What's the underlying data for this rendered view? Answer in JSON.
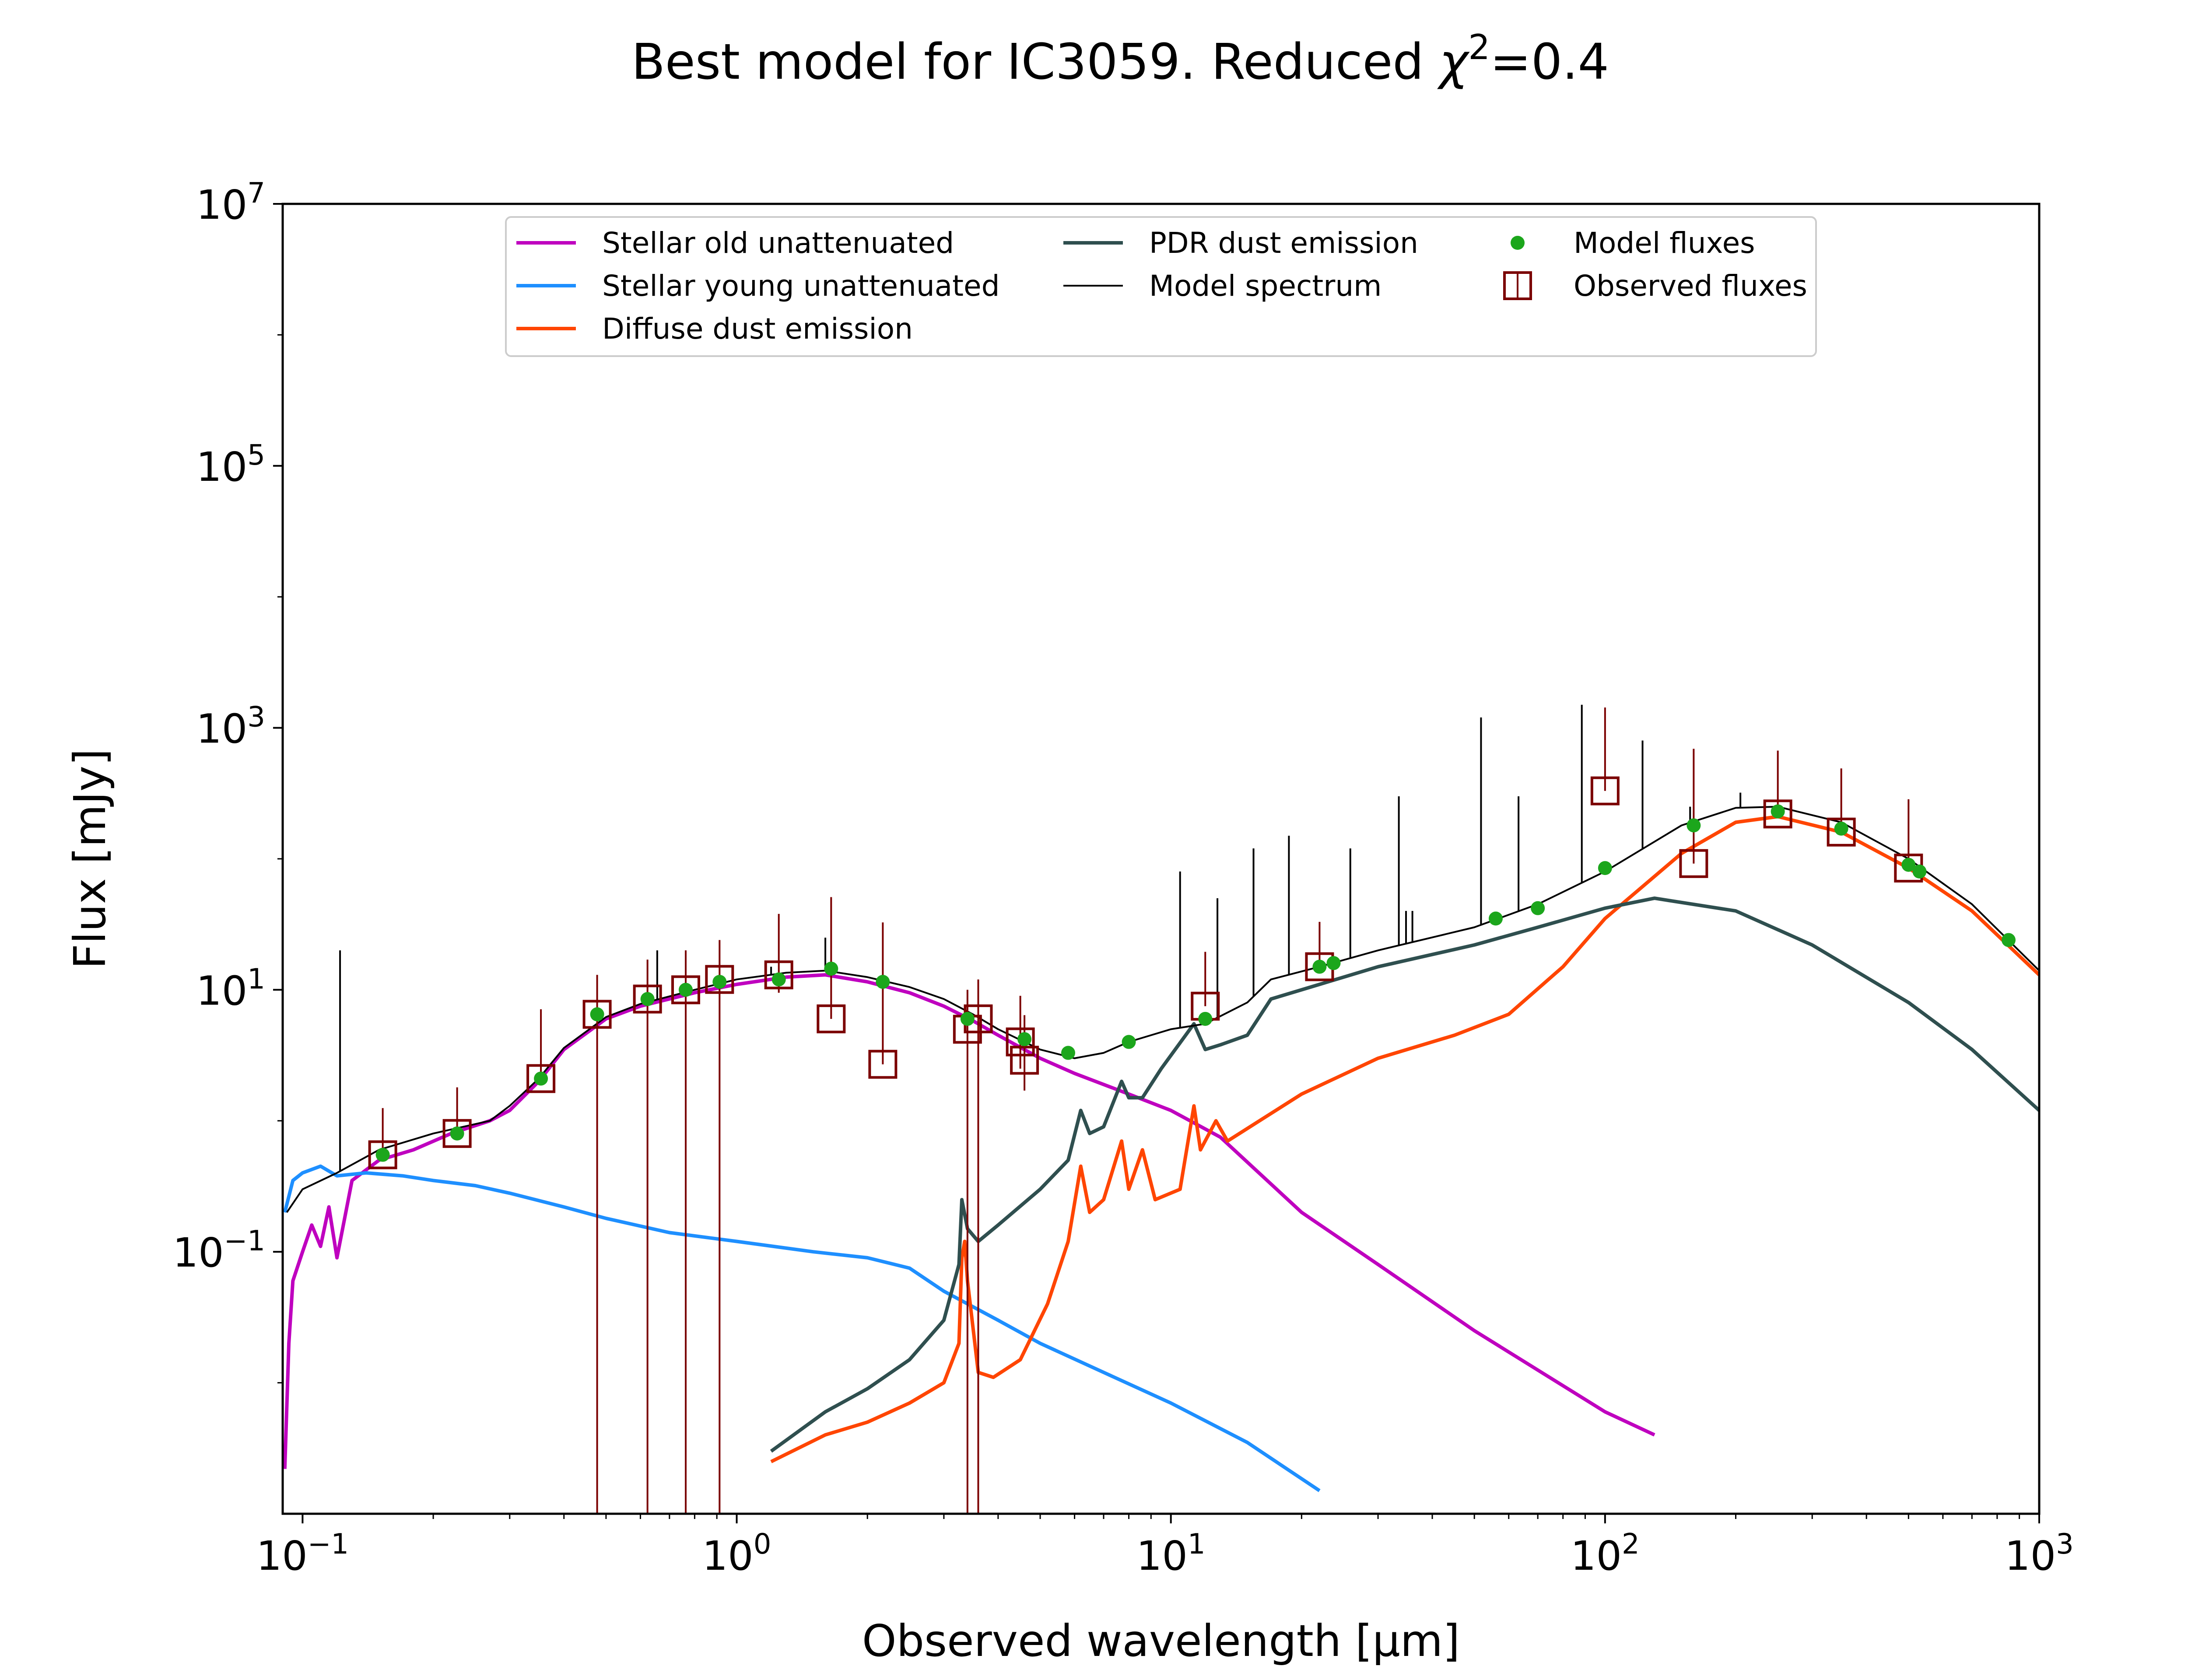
{
  "chart_data": {
    "type": "line",
    "title": "Best model for IC3059. Reduced",
    "title_chi": "χ",
    "title_sup": "2",
    "title_tail": "=0.4",
    "xlabel": "Observed wavelength [μm]",
    "ylabel": "Flux [mJy]",
    "xscale": "log",
    "yscale": "log",
    "xlim": [
      0.09,
      1000
    ],
    "ylim": [
      0.001,
      10000000
    ],
    "grid": false,
    "legend_position": "top-center",
    "xticks": [
      {
        "value": 0.1,
        "base": "10",
        "exp": "−1"
      },
      {
        "value": 1,
        "base": "10",
        "exp": "0"
      },
      {
        "value": 10,
        "base": "10",
        "exp": "1"
      },
      {
        "value": 100,
        "base": "10",
        "exp": "2"
      },
      {
        "value": 1000,
        "base": "10",
        "exp": "3"
      }
    ],
    "yticks": [
      {
        "value": 0.1,
        "base": "10",
        "exp": "−1"
      },
      {
        "value": 10,
        "base": "10",
        "exp": "1"
      },
      {
        "value": 1000,
        "base": "10",
        "exp": "3"
      },
      {
        "value": 100000,
        "base": "10",
        "exp": "5"
      },
      {
        "value": 10000000,
        "base": "10",
        "exp": "7"
      }
    ],
    "series": [
      {
        "name": "Stellar old unattenuated",
        "color": "#bf00bf",
        "points": [
          [
            0.091,
            0.0022
          ],
          [
            0.093,
            0.02
          ],
          [
            0.095,
            0.06
          ],
          [
            0.1,
            0.1
          ],
          [
            0.105,
            0.16
          ],
          [
            0.11,
            0.11
          ],
          [
            0.115,
            0.22
          ],
          [
            0.12,
            0.09
          ],
          [
            0.13,
            0.35
          ],
          [
            0.15,
            0.5
          ],
          [
            0.18,
            0.6
          ],
          [
            0.22,
            0.8
          ],
          [
            0.27,
            1.0
          ],
          [
            0.3,
            1.2
          ],
          [
            0.35,
            2.0
          ],
          [
            0.4,
            3.5
          ],
          [
            0.5,
            6.0
          ],
          [
            0.6,
            7.5
          ],
          [
            0.8,
            9.5
          ],
          [
            1.0,
            11
          ],
          [
            1.3,
            12.5
          ],
          [
            1.6,
            13
          ],
          [
            2.0,
            11.5
          ],
          [
            2.5,
            9.5
          ],
          [
            3.0,
            7.5
          ],
          [
            3.5,
            5.8
          ],
          [
            4.0,
            4.5
          ],
          [
            5.0,
            3.0
          ],
          [
            6.0,
            2.3
          ],
          [
            8.0,
            1.6
          ],
          [
            10,
            1.2
          ],
          [
            13,
            0.75
          ],
          [
            20,
            0.2
          ],
          [
            30,
            0.08
          ],
          [
            50,
            0.025
          ],
          [
            100,
            0.006
          ],
          [
            130,
            0.004
          ]
        ]
      },
      {
        "name": "Stellar young unattenuated",
        "color": "#1e8fff",
        "points": [
          [
            0.091,
            0.2
          ],
          [
            0.095,
            0.35
          ],
          [
            0.1,
            0.4
          ],
          [
            0.11,
            0.45
          ],
          [
            0.12,
            0.38
          ],
          [
            0.14,
            0.4
          ],
          [
            0.17,
            0.38
          ],
          [
            0.2,
            0.35
          ],
          [
            0.25,
            0.32
          ],
          [
            0.3,
            0.28
          ],
          [
            0.4,
            0.22
          ],
          [
            0.5,
            0.18
          ],
          [
            0.7,
            0.14
          ],
          [
            1.0,
            0.12
          ],
          [
            1.5,
            0.1
          ],
          [
            2.0,
            0.09
          ],
          [
            2.5,
            0.075
          ],
          [
            3.0,
            0.05
          ],
          [
            4.0,
            0.03
          ],
          [
            5.0,
            0.02
          ],
          [
            7.0,
            0.012
          ],
          [
            10,
            0.007
          ],
          [
            15,
            0.0035
          ],
          [
            22,
            0.0015
          ]
        ]
      },
      {
        "name": "Diffuse dust emission",
        "color": "#ff4500",
        "points": [
          [
            1.2,
            0.0025
          ],
          [
            1.6,
            0.004
          ],
          [
            2.0,
            0.005
          ],
          [
            2.5,
            0.007
          ],
          [
            3.0,
            0.01
          ],
          [
            3.25,
            0.02
          ],
          [
            3.3,
            0.09
          ],
          [
            3.35,
            0.12
          ],
          [
            3.4,
            0.06
          ],
          [
            3.6,
            0.012
          ],
          [
            3.9,
            0.011
          ],
          [
            4.5,
            0.015
          ],
          [
            5.2,
            0.04
          ],
          [
            5.8,
            0.12
          ],
          [
            6.2,
            0.45
          ],
          [
            6.5,
            0.2
          ],
          [
            7.0,
            0.25
          ],
          [
            7.7,
            0.7
          ],
          [
            8.0,
            0.3
          ],
          [
            8.6,
            0.6
          ],
          [
            9.2,
            0.25
          ],
          [
            10.5,
            0.3
          ],
          [
            11.3,
            1.3
          ],
          [
            11.7,
            0.6
          ],
          [
            12.7,
            1.0
          ],
          [
            13.5,
            0.7
          ],
          [
            16,
            1.0
          ],
          [
            20,
            1.6
          ],
          [
            30,
            3.0
          ],
          [
            45,
            4.5
          ],
          [
            60,
            6.5
          ],
          [
            80,
            15
          ],
          [
            100,
            35
          ],
          [
            150,
            110
          ],
          [
            200,
            190
          ],
          [
            250,
            210
          ],
          [
            350,
            160
          ],
          [
            500,
            85
          ],
          [
            700,
            40
          ],
          [
            1000,
            13
          ]
        ]
      },
      {
        "name": "PDR dust emission",
        "color": "#2f4f4f",
        "points": [
          [
            1.2,
            0.003
          ],
          [
            1.6,
            0.006
          ],
          [
            2.0,
            0.009
          ],
          [
            2.5,
            0.015
          ],
          [
            3.0,
            0.03
          ],
          [
            3.25,
            0.08
          ],
          [
            3.3,
            0.25
          ],
          [
            3.4,
            0.15
          ],
          [
            3.6,
            0.12
          ],
          [
            4.0,
            0.16
          ],
          [
            5.0,
            0.3
          ],
          [
            5.8,
            0.5
          ],
          [
            6.2,
            1.2
          ],
          [
            6.5,
            0.8
          ],
          [
            7.0,
            0.9
          ],
          [
            7.7,
            2.0
          ],
          [
            8.0,
            1.5
          ],
          [
            8.6,
            1.5
          ],
          [
            9.5,
            2.5
          ],
          [
            11.3,
            5.5
          ],
          [
            12.0,
            3.5
          ],
          [
            13,
            3.8
          ],
          [
            15,
            4.5
          ],
          [
            17,
            8.5
          ],
          [
            22,
            11
          ],
          [
            30,
            15
          ],
          [
            50,
            22
          ],
          [
            70,
            30
          ],
          [
            100,
            42
          ],
          [
            130,
            50
          ],
          [
            200,
            40
          ],
          [
            300,
            22
          ],
          [
            500,
            8
          ],
          [
            700,
            3.5
          ],
          [
            1000,
            1.2
          ]
        ]
      },
      {
        "name": "Model spectrum",
        "color": "#000000",
        "points": [
          [
            0.092,
            0.2
          ],
          [
            0.1,
            0.3
          ],
          [
            0.12,
            0.4
          ],
          [
            0.15,
            0.6
          ],
          [
            0.2,
            0.8
          ],
          [
            0.27,
            1.0
          ],
          [
            0.3,
            1.3
          ],
          [
            0.35,
            2.1
          ],
          [
            0.4,
            3.6
          ],
          [
            0.5,
            6.2
          ],
          [
            0.6,
            7.8
          ],
          [
            0.8,
            10
          ],
          [
            1.0,
            12
          ],
          [
            1.3,
            13.5
          ],
          [
            1.6,
            14
          ],
          [
            2.0,
            12.5
          ],
          [
            2.5,
            10.5
          ],
          [
            3.0,
            8.5
          ],
          [
            3.5,
            6.5
          ],
          [
            4.0,
            5.0
          ],
          [
            5.0,
            3.5
          ],
          [
            6.0,
            3.0
          ],
          [
            7.0,
            3.3
          ],
          [
            8.0,
            4.0
          ],
          [
            10,
            5.0
          ],
          [
            12,
            5.5
          ],
          [
            15,
            8
          ],
          [
            17,
            12
          ],
          [
            22,
            15
          ],
          [
            30,
            20
          ],
          [
            50,
            30
          ],
          [
            70,
            45
          ],
          [
            100,
            80
          ],
          [
            150,
            180
          ],
          [
            200,
            245
          ],
          [
            250,
            250
          ],
          [
            350,
            190
          ],
          [
            500,
            100
          ],
          [
            700,
            45
          ],
          [
            1000,
            14
          ]
        ],
        "lines": [
          [
            0.122,
            20
          ],
          [
            0.656,
            20
          ],
          [
            1.2,
            15
          ],
          [
            1.6,
            25
          ],
          [
            10.5,
            80
          ],
          [
            12.8,
            50
          ],
          [
            15.5,
            120
          ],
          [
            18.7,
            150
          ],
          [
            25.9,
            120
          ],
          [
            33.5,
            300
          ],
          [
            34.8,
            40
          ],
          [
            36,
            40
          ],
          [
            51.8,
            1200
          ],
          [
            63.2,
            300
          ],
          [
            88.4,
            1500
          ],
          [
            122,
            800
          ],
          [
            157,
            250
          ],
          [
            205,
            320
          ]
        ]
      }
    ],
    "model_fluxes": {
      "name": "Model fluxes",
      "color": "#1ca61c",
      "points": [
        [
          0.153,
          0.55
        ],
        [
          0.227,
          0.8
        ],
        [
          0.354,
          2.1
        ],
        [
          0.477,
          6.5
        ],
        [
          0.623,
          8.5
        ],
        [
          0.763,
          10
        ],
        [
          0.913,
          11.5
        ],
        [
          1.25,
          12
        ],
        [
          1.65,
          14.5
        ],
        [
          2.17,
          11.5
        ],
        [
          3.4,
          6.0
        ],
        [
          4.6,
          4.2
        ],
        [
          5.8,
          3.3
        ],
        [
          8.0,
          4.0
        ],
        [
          12,
          6.0
        ],
        [
          22,
          15
        ],
        [
          23.7,
          16
        ],
        [
          56,
          35
        ],
        [
          70,
          42
        ],
        [
          100,
          85
        ],
        [
          160,
          180
        ],
        [
          250,
          230
        ],
        [
          350,
          170
        ],
        [
          500,
          90
        ],
        [
          530,
          80
        ],
        [
          850,
          24
        ]
      ]
    },
    "observed_fluxes": {
      "name": "Observed fluxes",
      "color": "#7b0000",
      "points": [
        {
          "x": 0.153,
          "y": 0.55,
          "err_lo": 0.001,
          "err_hi": 0.7
        },
        {
          "x": 0.227,
          "y": 0.8,
          "err_lo": 0.001,
          "err_hi": 1.0
        },
        {
          "x": 0.354,
          "y": 2.1,
          "err_lo": 0.001,
          "err_hi": 5.0
        },
        {
          "x": 0.477,
          "y": 6.5,
          "err_lo": 6.5,
          "err_hi": 6.5
        },
        {
          "x": 0.623,
          "y": 8.5,
          "err_lo": 8.5,
          "err_hi": 8.5
        },
        {
          "x": 0.763,
          "y": 10,
          "err_lo": 10,
          "err_hi": 10
        },
        {
          "x": 0.913,
          "y": 12,
          "err_lo": 12,
          "err_hi": 12
        },
        {
          "x": 1.25,
          "y": 13,
          "err_lo": 3.5,
          "err_hi": 25
        },
        {
          "x": 1.65,
          "y": 6.0,
          "err_lo": 0.001,
          "err_hi": 45
        },
        {
          "x": 2.17,
          "y": 2.7,
          "err_lo": 0.001,
          "err_hi": 30
        },
        {
          "x": 3.4,
          "y": 5.0,
          "err_lo": 5.0,
          "err_hi": 5.0
        },
        {
          "x": 3.6,
          "y": 6.0,
          "err_lo": 6.0,
          "err_hi": 6.0
        },
        {
          "x": 4.5,
          "y": 4.0,
          "err_lo": 1.5,
          "err_hi": 5.0
        },
        {
          "x": 4.6,
          "y": 2.9,
          "err_lo": 1.2,
          "err_hi": 3.5
        },
        {
          "x": 12,
          "y": 7.5,
          "err_lo": 0.001,
          "err_hi": 12
        },
        {
          "x": 22,
          "y": 15,
          "err_lo": 0.001,
          "err_hi": 18
        },
        {
          "x": 100,
          "y": 330,
          "err_lo": 0.001,
          "err_hi": 1100
        },
        {
          "x": 160,
          "y": 92,
          "err_lo": 0.001,
          "err_hi": 600
        },
        {
          "x": 250,
          "y": 220,
          "err_lo": 0.001,
          "err_hi": 450
        },
        {
          "x": 350,
          "y": 160,
          "err_lo": 0.001,
          "err_hi": 330
        },
        {
          "x": 500,
          "y": 85,
          "err_lo": 0.001,
          "err_hi": 200
        }
      ]
    }
  }
}
